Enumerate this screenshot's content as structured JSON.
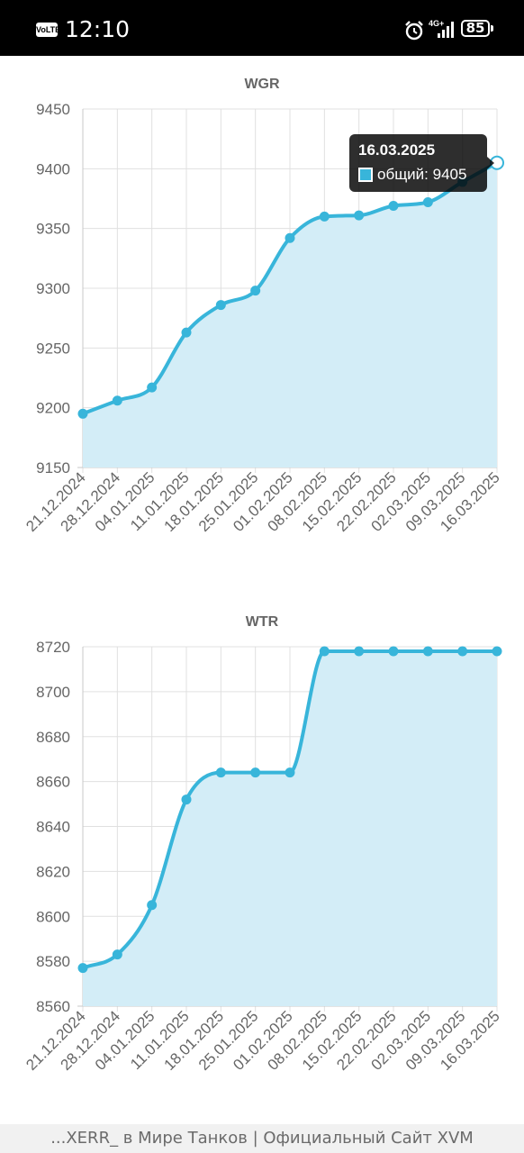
{
  "status_bar": {
    "volte": "VoLTE",
    "time": "12:10",
    "network": "4G+",
    "battery": "85",
    "icons": [
      "alarm-icon",
      "signal-icon",
      "battery-icon"
    ]
  },
  "colors": {
    "line": "#38b5da",
    "fill": "#d3edf7",
    "grid": "#e0e0e0",
    "axis_text": "#666666"
  },
  "tooltip": {
    "title": "16.03.2025",
    "label": "общий: 9405"
  },
  "footer": {
    "text": "...XERR_ в Мире Танков | Официальный Сайт XVM"
  },
  "chart_data": [
    {
      "type": "area",
      "title": "WGR",
      "x": [
        "21.12.2024",
        "28.12.2024",
        "04.01.2025",
        "11.01.2025",
        "18.01.2025",
        "25.01.2025",
        "01.02.2025",
        "08.02.2025",
        "15.02.2025",
        "22.02.2025",
        "02.03.2025",
        "09.03.2025",
        "16.03.2025"
      ],
      "series": [
        {
          "values": [
            9195,
            9206,
            9217,
            9263,
            9286,
            9298,
            9342,
            9360,
            9361,
            9369,
            9372,
            9389,
            9405
          ]
        }
      ],
      "ylim": [
        9150,
        9450
      ],
      "yticks": [
        9150,
        9200,
        9250,
        9300,
        9350,
        9400,
        9450
      ],
      "grid": true,
      "legend": "none"
    },
    {
      "type": "area",
      "title": "WTR",
      "x": [
        "21.12.2024",
        "28.12.2024",
        "04.01.2025",
        "11.01.2025",
        "18.01.2025",
        "25.01.2025",
        "01.02.2025",
        "08.02.2025",
        "15.02.2025",
        "22.02.2025",
        "02.03.2025",
        "09.03.2025",
        "16.03.2025"
      ],
      "series": [
        {
          "values": [
            8577,
            8583,
            8605,
            8652,
            8664,
            8664,
            8664,
            8718,
            8718,
            8718,
            8718,
            8718,
            8718
          ]
        }
      ],
      "ylim": [
        8560,
        8720
      ],
      "yticks": [
        8560,
        8580,
        8600,
        8620,
        8640,
        8660,
        8680,
        8700,
        8720
      ],
      "grid": true,
      "legend": "none"
    }
  ]
}
